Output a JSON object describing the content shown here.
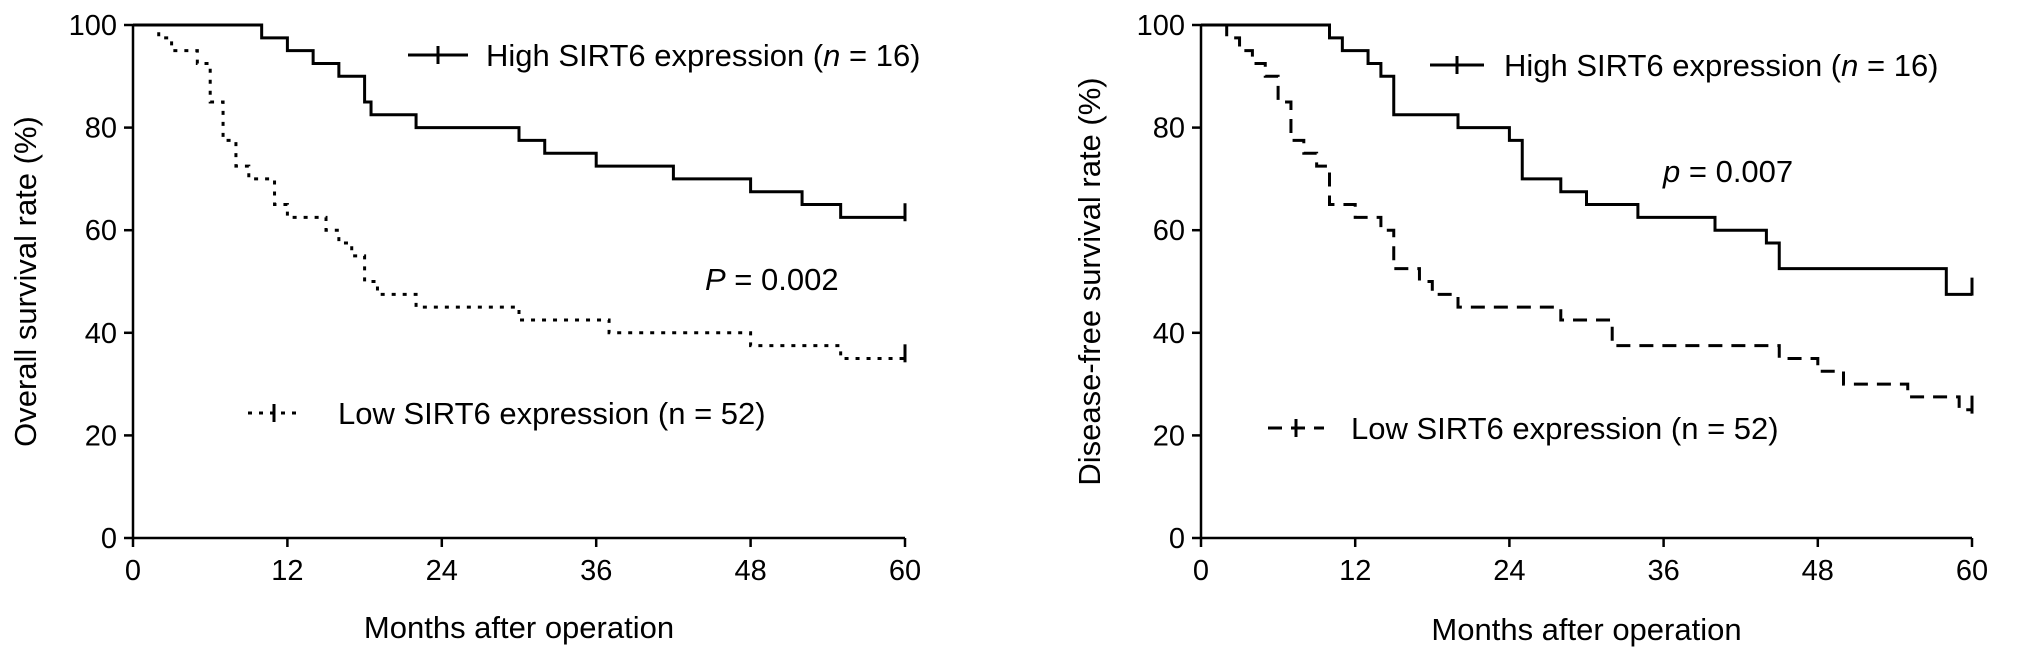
{
  "chart_data": [
    {
      "type": "line",
      "xlabel": "Months after operation",
      "ylabel": "Overall survival rate (%)",
      "xlim": [
        0,
        60
      ],
      "ylim": [
        0,
        100
      ],
      "xticks": [
        0,
        12,
        24,
        36,
        48,
        60
      ],
      "yticks": [
        0,
        20,
        40,
        60,
        80,
        100
      ],
      "grid": false,
      "legend_position": "top-right",
      "pvalue": {
        "prefix": "P",
        "text": " = 0.002"
      },
      "series": [
        {
          "name_prefix": "High SIRT6 expression (",
          "name_n": "n",
          "name_suffix": " = 16)",
          "style": "solid",
          "steps": [
            [
              0,
              100
            ],
            [
              10,
              97.5
            ],
            [
              12,
              95
            ],
            [
              14,
              92.5
            ],
            [
              16,
              90
            ],
            [
              18,
              85
            ],
            [
              18.5,
              82.5
            ],
            [
              22,
              80
            ],
            [
              30,
              77.5
            ],
            [
              32,
              75
            ],
            [
              36,
              72.5
            ],
            [
              42,
              70
            ],
            [
              48,
              67.5
            ],
            [
              52,
              65
            ],
            [
              55,
              62.5
            ],
            [
              60,
              62.5
            ]
          ],
          "censor": [
            [
              60,
              63.5
            ]
          ]
        },
        {
          "name": "Low SIRT6 expression (n = 52)",
          "style": "dotted",
          "steps": [
            [
              0,
              100
            ],
            [
              2,
              97.5
            ],
            [
              3,
              95
            ],
            [
              5,
              92.5
            ],
            [
              6,
              85
            ],
            [
              7,
              77.5
            ],
            [
              8,
              72.5
            ],
            [
              9,
              70
            ],
            [
              11,
              65
            ],
            [
              12,
              62.5
            ],
            [
              15,
              60
            ],
            [
              16,
              57.5
            ],
            [
              17,
              55
            ],
            [
              18,
              50
            ],
            [
              19,
              47.5
            ],
            [
              22,
              45
            ],
            [
              30,
              42.5
            ],
            [
              37,
              40
            ],
            [
              48,
              37.5
            ],
            [
              55,
              35
            ],
            [
              60,
              35
            ]
          ],
          "censor": [
            [
              60,
              36
            ]
          ]
        }
      ]
    },
    {
      "type": "line",
      "xlabel": "Months after operation",
      "ylabel": "Disease-free survival rate (%)",
      "xlim": [
        0,
        60
      ],
      "ylim": [
        0,
        100
      ],
      "xticks": [
        0,
        12,
        24,
        36,
        48,
        60
      ],
      "yticks": [
        0,
        20,
        40,
        60,
        80,
        100
      ],
      "grid": false,
      "legend_position": "top-right",
      "pvalue": {
        "prefix": "p",
        "text": " = 0.007"
      },
      "series": [
        {
          "name_prefix": "High SIRT6 expression (",
          "name_n": "n",
          "name_suffix": " = 16)",
          "style": "solid",
          "steps": [
            [
              0,
              100
            ],
            [
              10,
              97.5
            ],
            [
              11,
              95
            ],
            [
              13,
              92.5
            ],
            [
              14,
              90
            ],
            [
              15,
              82.5
            ],
            [
              20,
              80
            ],
            [
              24,
              77.5
            ],
            [
              25,
              70
            ],
            [
              28,
              67.5
            ],
            [
              30,
              65
            ],
            [
              34,
              62.5
            ],
            [
              40,
              60
            ],
            [
              44,
              57.5
            ],
            [
              45,
              52.5
            ],
            [
              58,
              47.5
            ],
            [
              60,
              47.5
            ]
          ],
          "censor": [
            [
              60,
              49
            ]
          ]
        },
        {
          "name": "Low SIRT6 expression (n = 52)",
          "style": "dashed",
          "steps": [
            [
              0,
              100
            ],
            [
              2,
              97.5
            ],
            [
              3,
              95
            ],
            [
              4,
              92.5
            ],
            [
              5,
              90
            ],
            [
              6,
              85
            ],
            [
              7,
              77.5
            ],
            [
              8,
              75
            ],
            [
              9,
              72.5
            ],
            [
              10,
              65
            ],
            [
              12,
              62.5
            ],
            [
              14,
              60
            ],
            [
              15,
              52.5
            ],
            [
              17,
              50
            ],
            [
              18,
              47.5
            ],
            [
              20,
              45
            ],
            [
              28,
              42.5
            ],
            [
              32,
              37.5
            ],
            [
              45,
              35
            ],
            [
              48,
              32.5
            ],
            [
              50,
              30
            ],
            [
              55,
              27.5
            ],
            [
              59,
              25
            ],
            [
              60,
              25
            ]
          ],
          "censor": [
            [
              60,
              26
            ]
          ]
        }
      ]
    }
  ]
}
